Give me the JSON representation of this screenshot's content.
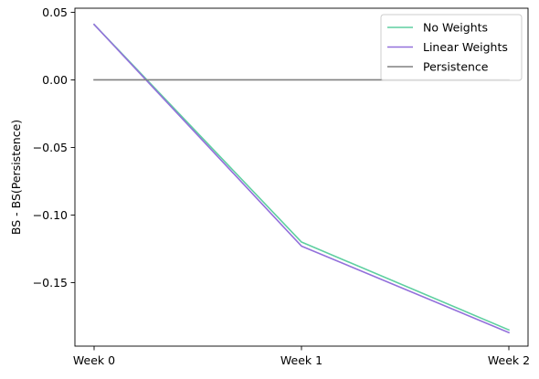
{
  "chart_data": {
    "type": "line",
    "x": [
      "Week 0",
      "Week 1",
      "Week 2"
    ],
    "series": [
      {
        "name": "No Weights",
        "color": "#5ecfa0",
        "values": [
          0.041,
          -0.12,
          -0.185
        ]
      },
      {
        "name": "Linear Weights",
        "color": "#9370db",
        "values": [
          0.041,
          -0.123,
          -0.187
        ]
      },
      {
        "name": "Persistence",
        "color": "#808080",
        "values": [
          0.0,
          0.0,
          0.0
        ]
      }
    ],
    "ylabel": "BS - BS(Persistence)",
    "xlabel": "",
    "yticks": [
      0.05,
      0.0,
      -0.05,
      -0.1,
      -0.15
    ],
    "ytick_labels": [
      "0.05",
      "0.00",
      "−0.05",
      "−0.10",
      "−0.15"
    ],
    "ylim": [
      -0.197,
      0.053
    ],
    "grid": false,
    "legend_position": "top-right"
  }
}
